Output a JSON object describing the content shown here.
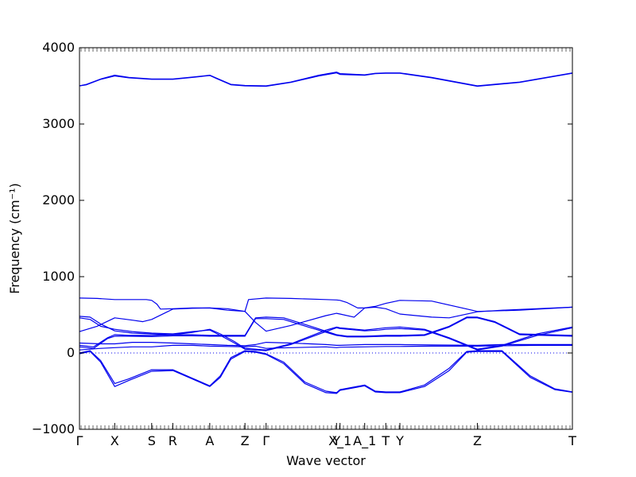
{
  "chart_data": {
    "type": "line",
    "xlabel": "Wave vector",
    "ylabel": "Frequency (cm⁻¹)",
    "ylim": [
      -1000,
      4000
    ],
    "xlim": [
      0,
      14
    ],
    "grid": false,
    "colors": {
      "bands": "#0000ee",
      "axis": "#000000",
      "zero_line": "#0000ee"
    },
    "y_ticks": [
      {
        "value": -1000,
        "label": "−1000"
      },
      {
        "value": 0,
        "label": "0"
      },
      {
        "value": 1000,
        "label": "1000"
      },
      {
        "value": 2000,
        "label": "2000"
      },
      {
        "value": 3000,
        "label": "3000"
      },
      {
        "value": 4000,
        "label": "4000"
      }
    ],
    "x_ticks": [
      {
        "value": 0,
        "label": "Γ"
      },
      {
        "value": 1,
        "label": "X"
      },
      {
        "value": 2.05,
        "label": "S"
      },
      {
        "value": 2.65,
        "label": "R"
      },
      {
        "value": 3.7,
        "label": "A"
      },
      {
        "value": 4.7,
        "label": "Z"
      },
      {
        "value": 5.3,
        "label": "Γ"
      },
      {
        "value": 7.3,
        "label": "Y"
      },
      {
        "value": 7.4,
        "label": "X_1"
      },
      {
        "value": 8.1,
        "label": "A_1"
      },
      {
        "value": 8.7,
        "label": "T"
      },
      {
        "value": 9.1,
        "label": "Y"
      },
      {
        "value": 11.3,
        "label": "Z"
      },
      {
        "value": 14,
        "label": "T"
      }
    ],
    "series": [
      {
        "x": [
          0,
          0.2,
          0.6,
          1,
          1.4,
          2.05,
          2.65,
          3.2,
          3.7,
          3.9,
          4.3,
          4.7,
          5.3,
          6.0,
          6.8,
          7.3,
          7.4,
          8.1,
          8.4,
          8.7,
          9.1,
          10.0,
          11.3,
          12.5,
          14
        ],
        "values": [
          3500,
          3520,
          3590,
          3640,
          3610,
          3590,
          3590,
          3615,
          3640,
          3600,
          3520,
          3505,
          3500,
          3550,
          3640,
          3680,
          3660,
          3645,
          3665,
          3670,
          3670,
          3610,
          3500,
          3550,
          3670
        ]
      },
      {
        "x": [
          0,
          0.2,
          0.6,
          1,
          1.4,
          2.05,
          2.65,
          3.2,
          3.7,
          3.9,
          4.3,
          4.7,
          5.3,
          6.0,
          6.8,
          7.3,
          7.4,
          8.1,
          8.4,
          8.7,
          9.1,
          10.0,
          11.3,
          12.5,
          14
        ],
        "values": [
          3500,
          3515,
          3585,
          3630,
          3605,
          3585,
          3585,
          3610,
          3635,
          3595,
          3515,
          3500,
          3495,
          3545,
          3630,
          3670,
          3650,
          3640,
          3660,
          3665,
          3665,
          3605,
          3495,
          3545,
          3665
        ]
      },
      {
        "x": [
          0,
          0.5,
          1,
          1.5,
          1.9,
          2.05,
          2.2,
          2.3,
          2.65,
          3.2,
          3.7,
          4.2,
          4.7,
          4.8,
          5.3,
          6,
          7,
          7.3,
          7.4,
          7.6,
          7.9,
          8.1,
          8.4,
          8.7,
          9.1,
          10,
          11.3,
          12.5,
          14
        ],
        "values": [
          720,
          715,
          700,
          700,
          700,
          690,
          640,
          575,
          580,
          590,
          590,
          560,
          545,
          700,
          720,
          715,
          700,
          695,
          690,
          660,
          590,
          590,
          610,
          650,
          690,
          680,
          545,
          560,
          600
        ]
      },
      {
        "x": [
          0,
          0.5,
          1,
          1.5,
          1.8,
          2.05,
          2.65,
          3.2,
          3.7,
          4.2,
          4.7,
          5.0,
          5.3,
          6,
          7,
          7.3,
          7.4,
          7.8,
          8.1,
          8.4,
          8.7,
          9.1,
          10,
          10.5,
          11.3,
          12,
          14
        ],
        "values": [
          280,
          350,
          460,
          430,
          410,
          440,
          575,
          585,
          590,
          580,
          545,
          400,
          285,
          360,
          490,
          520,
          510,
          470,
          590,
          600,
          580,
          510,
          470,
          460,
          540,
          560,
          600
        ]
      },
      {
        "x": [
          0,
          0.3,
          0.6,
          1,
          1.5,
          2.05,
          2.65,
          3.2,
          3.7,
          4.0,
          4.4,
          4.7,
          5.3,
          6,
          7,
          7.3,
          7.4,
          8.1,
          8.5,
          8.7,
          9.1,
          9.8,
          10.5,
          11.3,
          12,
          13,
          14
        ],
        "values": [
          480,
          470,
          380,
          290,
          260,
          250,
          240,
          270,
          310,
          250,
          150,
          60,
          40,
          120,
          300,
          340,
          330,
          300,
          320,
          330,
          340,
          310,
          200,
          50,
          100,
          250,
          340
        ]
      },
      {
        "x": [
          0,
          0.3,
          0.6,
          1,
          1.5,
          2.05,
          2.65,
          3.2,
          3.7,
          4.0,
          4.4,
          4.7,
          5.3,
          6,
          7,
          7.3,
          7.4,
          8.1,
          8.5,
          8.7,
          9.1,
          9.8,
          10.5,
          11.3,
          12,
          13,
          14
        ],
        "values": [
          460,
          440,
          350,
          310,
          280,
          260,
          250,
          280,
          300,
          230,
          130,
          50,
          30,
          110,
          280,
          330,
          320,
          290,
          300,
          310,
          320,
          300,
          190,
          40,
          90,
          230,
          330
        ]
      },
      {
        "x": [
          0,
          0.4,
          0.8,
          1,
          1.4,
          2.05,
          2.65,
          3.2,
          3.7,
          4.3,
          4.7,
          5.0,
          5.3,
          5.8,
          6.5,
          7.3,
          7.6,
          8.1,
          8.7,
          9.1,
          9.8,
          10.5,
          11.0,
          11.3,
          11.8,
          12.5,
          14
        ],
        "values": [
          100,
          80,
          200,
          240,
          230,
          230,
          240,
          240,
          230,
          230,
          230,
          460,
          470,
          460,
          360,
          240,
          220,
          220,
          230,
          230,
          240,
          350,
          470,
          470,
          410,
          250,
          230
        ]
      },
      {
        "x": [
          0,
          0.4,
          0.8,
          1,
          1.4,
          2.05,
          2.65,
          3.2,
          3.7,
          4.3,
          4.7,
          5.0,
          5.3,
          5.8,
          6.5,
          7.3,
          7.6,
          8.1,
          8.7,
          9.1,
          9.8,
          10.5,
          11.0,
          11.3,
          11.8,
          12.5,
          14
        ],
        "values": [
          80,
          60,
          190,
          220,
          220,
          215,
          225,
          225,
          220,
          220,
          220,
          450,
          450,
          440,
          340,
          230,
          210,
          210,
          220,
          220,
          230,
          340,
          460,
          460,
          400,
          240,
          220
        ]
      },
      {
        "x": [
          0,
          0.6,
          1,
          1.5,
          2.05,
          2.65,
          3.2,
          3.7,
          4.2,
          4.7,
          5.0,
          5.3,
          6,
          7,
          7.3,
          7.4,
          8.1,
          8.7,
          9.1,
          10,
          11.3,
          12,
          13,
          14
        ],
        "values": [
          130,
          120,
          120,
          140,
          140,
          130,
          120,
          110,
          100,
          95,
          110,
          140,
          130,
          110,
          100,
          100,
          110,
          110,
          110,
          105,
          100,
          110,
          110,
          110
        ]
      },
      {
        "x": [
          0,
          0.6,
          1,
          1.5,
          2.05,
          2.65,
          3.2,
          3.7,
          4.2,
          4.7,
          5.0,
          5.3,
          6,
          7,
          7.3,
          7.4,
          8.1,
          8.7,
          9.1,
          10,
          11.3,
          12,
          13,
          14
        ],
        "values": [
          40,
          60,
          70,
          80,
          80,
          100,
          100,
          90,
          85,
          80,
          90,
          60,
          70,
          80,
          70,
          75,
          80,
          85,
          85,
          90,
          90,
          95,
          100,
          100
        ]
      },
      {
        "x": [
          0,
          0.3,
          0.6,
          1,
          1.4,
          2.05,
          2.65,
          3.2,
          3.7,
          4.0,
          4.3,
          4.7,
          5.0,
          5.3,
          5.8,
          6.4,
          7.0,
          7.3,
          7.4,
          8.1,
          8.4,
          8.7,
          9.1,
          9.8,
          10.5,
          11.0,
          11.3,
          12.0,
          12.8,
          13.5,
          14
        ],
        "values": [
          0,
          30,
          -100,
          -400,
          -340,
          -220,
          -220,
          -330,
          -430,
          -300,
          -60,
          30,
          20,
          -10,
          -120,
          -380,
          -500,
          -520,
          -480,
          -420,
          -500,
          -510,
          -510,
          -420,
          -200,
          20,
          30,
          30,
          -300,
          -470,
          -510
        ]
      },
      {
        "x": [
          0,
          0.3,
          0.6,
          1,
          1.4,
          2.05,
          2.65,
          3.2,
          3.7,
          4.0,
          4.3,
          4.7,
          5.0,
          5.3,
          5.8,
          6.4,
          7.0,
          7.3,
          7.4,
          8.1,
          8.4,
          8.7,
          9.1,
          9.8,
          10.5,
          11.0,
          11.3,
          12.0,
          12.8,
          13.5,
          14
        ],
        "values": [
          -10,
          20,
          -120,
          -440,
          -360,
          -240,
          -230,
          -340,
          -440,
          -320,
          -80,
          20,
          10,
          -20,
          -140,
          -400,
          -520,
          -530,
          -490,
          -430,
          -510,
          -520,
          -520,
          -440,
          -230,
          10,
          20,
          20,
          -320,
          -480,
          -515
        ]
      }
    ]
  }
}
